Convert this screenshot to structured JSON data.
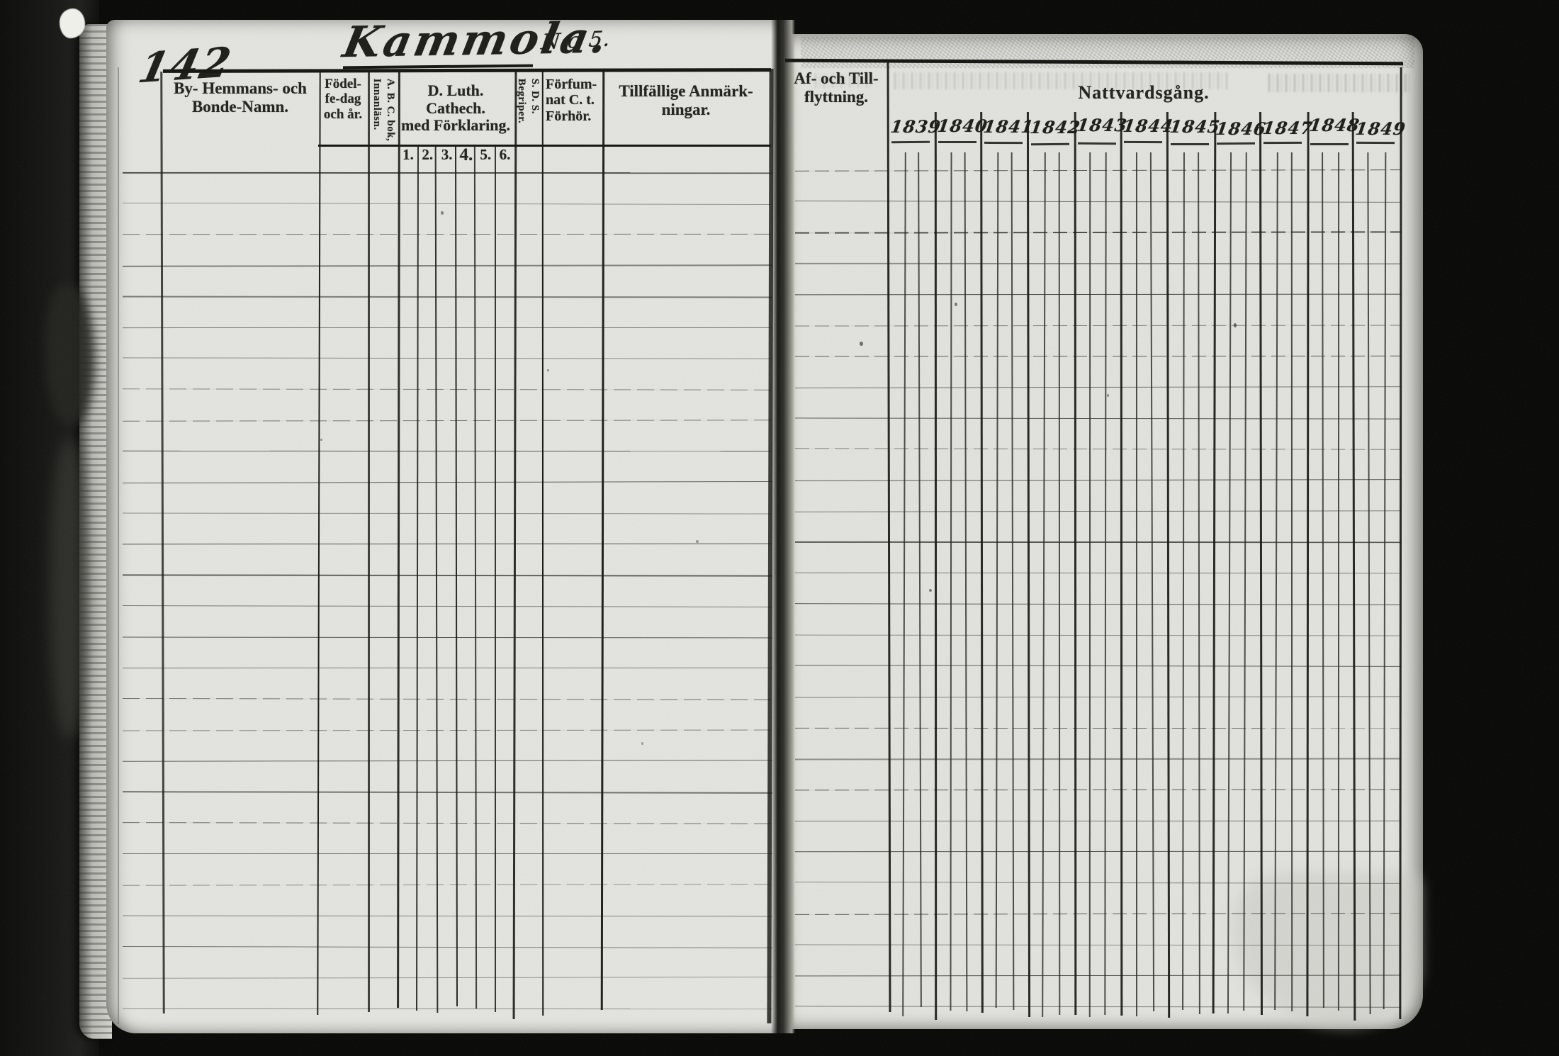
{
  "colors": {
    "paper": "#e3e3df",
    "ink_print": "#20201c",
    "ink_hand": "#1b1b17",
    "background": "#060605"
  },
  "handwritten": {
    "page_number": "142",
    "village_title": "Kammola.",
    "village_no": "N:o 5.",
    "years": [
      "1839",
      "1840",
      "1841",
      "1842",
      "1843",
      "1844",
      "1845",
      "1846",
      "1847",
      "1848",
      "1849"
    ]
  },
  "left_table": {
    "by_hemmans": [
      "By- Hemmans- och",
      "Bonde-Namn."
    ],
    "fodelsedag": [
      "Födel-",
      "fe-dag",
      "och år."
    ],
    "abc_bok": [
      "A. B. C. bok,",
      "Innanläsn."
    ],
    "d_luth": [
      "D. Luth. Cathech.",
      "med Förklaring."
    ],
    "begriper": [
      "S. D. S.",
      "Begriper."
    ],
    "forsummat": [
      "Förfum-",
      "nat C. t.",
      "Förhör."
    ],
    "tillfallige": [
      "Tillfällige Anmärk-",
      "ningar."
    ],
    "catechism_numbers": [
      "1.",
      "2.",
      "3.",
      "4.",
      "5.",
      "6."
    ]
  },
  "right_table": {
    "af_och_till": [
      "Af- och Till-",
      "flyttning."
    ],
    "nattvardsgang": "Nattvardsgång."
  }
}
